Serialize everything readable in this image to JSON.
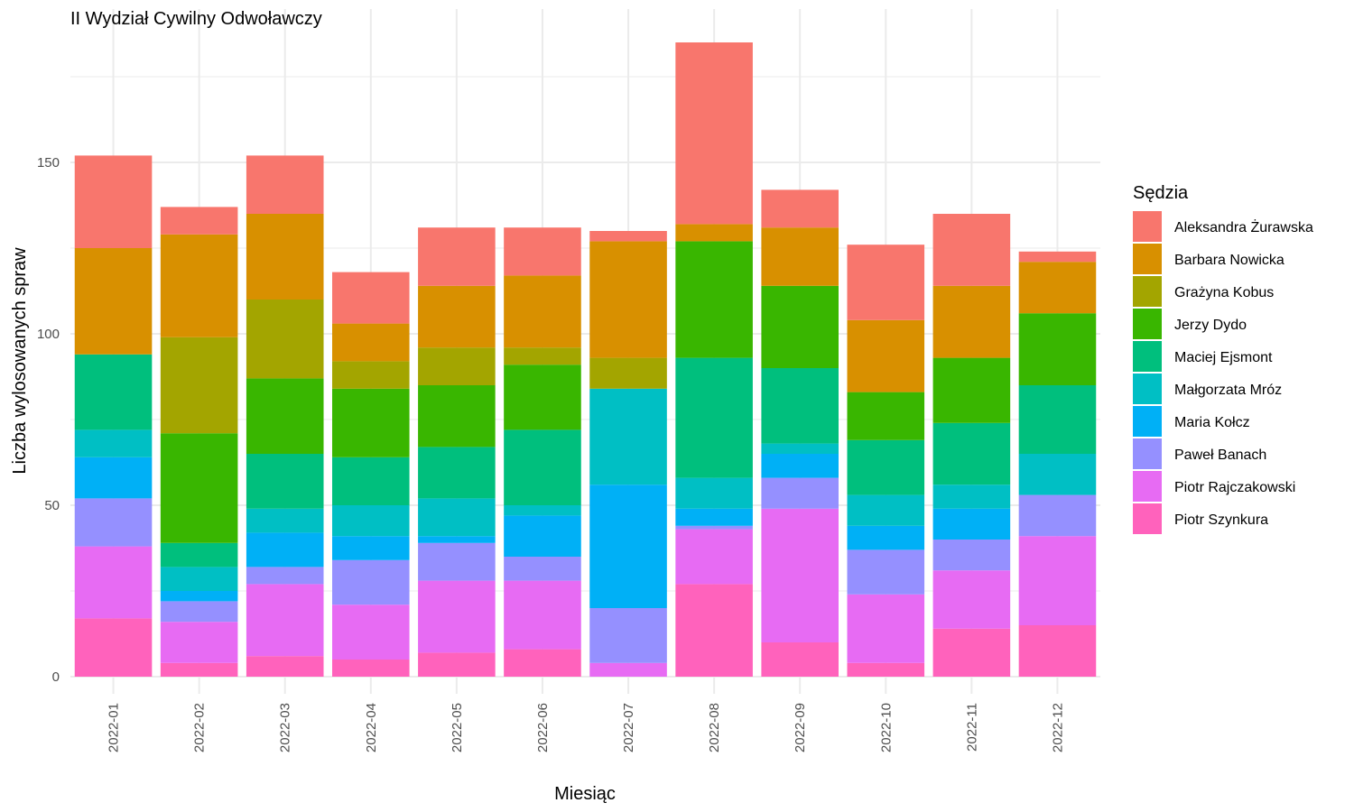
{
  "chart_data": {
    "type": "bar",
    "stacked": true,
    "title": "II Wydział Cywilny Odwoławczy",
    "xlabel": "Miesiąc",
    "ylabel": "Liczba wylosowanych spraw",
    "ylim": [
      0,
      200
    ],
    "yticks": [
      0,
      50,
      100,
      150
    ],
    "grid": true,
    "legend_position": "right",
    "legend_title": "Sędzia",
    "categories": [
      "2022-01",
      "2022-02",
      "2022-03",
      "2022-04",
      "2022-05",
      "2022-06",
      "2022-07",
      "2022-08",
      "2022-09",
      "2022-10",
      "2022-11",
      "2022-12"
    ],
    "series": [
      {
        "name": "Aleksandra Żurawska",
        "color": "#F8766D",
        "values": [
          27,
          8,
          17,
          15,
          17,
          14,
          3,
          53,
          11,
          22,
          21,
          3
        ]
      },
      {
        "name": "Barbara Nowicka",
        "color": "#D89000",
        "values": [
          31,
          30,
          25,
          11,
          18,
          21,
          34,
          5,
          17,
          21,
          21,
          15
        ]
      },
      {
        "name": "Grażyna Kobus",
        "color": "#A3A500",
        "values": [
          0,
          28,
          23,
          8,
          11,
          5,
          9,
          0,
          0,
          0,
          0,
          0
        ]
      },
      {
        "name": "Jerzy Dydo",
        "color": "#39B600",
        "values": [
          0,
          32,
          22,
          20,
          18,
          19,
          0,
          34,
          24,
          14,
          19,
          21
        ]
      },
      {
        "name": "Maciej Ejsmont",
        "color": "#00BF7D",
        "values": [
          22,
          7,
          16,
          14,
          15,
          22,
          0,
          35,
          22,
          16,
          18,
          20
        ]
      },
      {
        "name": "Małgorzata Mróz",
        "color": "#00BFC4",
        "values": [
          8,
          7,
          7,
          9,
          11,
          3,
          28,
          9,
          3,
          9,
          7,
          12
        ]
      },
      {
        "name": "Maria Kołcz",
        "color": "#00B0F6",
        "values": [
          12,
          3,
          10,
          7,
          2,
          12,
          36,
          5,
          7,
          7,
          9,
          0
        ]
      },
      {
        "name": "Paweł Banach",
        "color": "#9590FF",
        "values": [
          14,
          6,
          5,
          13,
          11,
          7,
          16,
          1,
          9,
          13,
          9,
          12
        ]
      },
      {
        "name": "Piotr Rajczakowski",
        "color": "#E76BF3",
        "values": [
          21,
          12,
          21,
          16,
          21,
          20,
          4,
          16,
          39,
          20,
          17,
          26
        ]
      },
      {
        "name": "Piotr Szynkura",
        "color": "#FF62BC",
        "values": [
          17,
          4,
          6,
          5,
          7,
          8,
          0,
          27,
          10,
          4,
          14,
          15
        ]
      }
    ]
  }
}
